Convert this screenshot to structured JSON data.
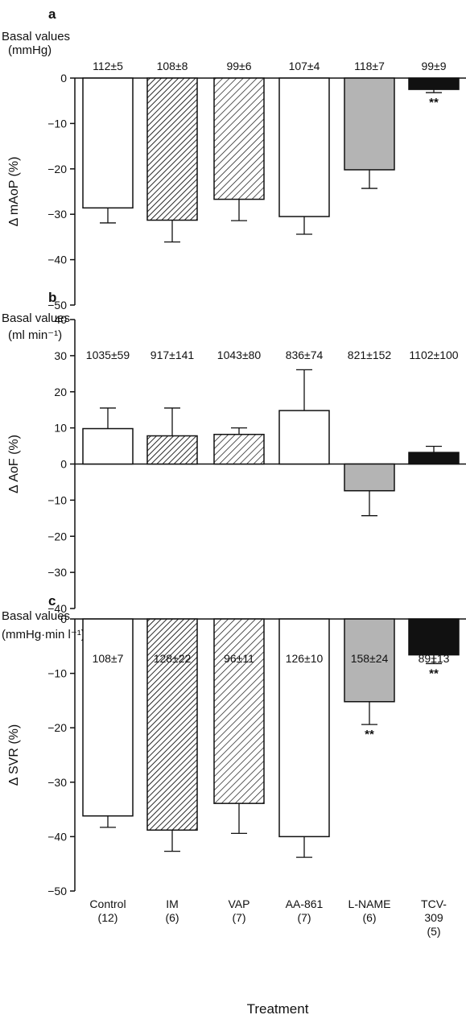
{
  "colors": {
    "control": "#ffffff",
    "im": "hatch-dense",
    "vap": "hatch-sparse",
    "aa861": "#ffffff",
    "lname": "#b4b4b4",
    "tcv309": "#111111"
  },
  "chart_data": [
    {
      "type": "bar",
      "panel": "a",
      "basal_title": [
        "Basal values",
        "(mmHg)"
      ],
      "ylabel": "Δ mAoP (%)",
      "xlabel": "",
      "ylim": [
        -50,
        0
      ],
      "yticks": [
        0,
        -10,
        -20,
        -30,
        -40,
        -50
      ],
      "tick_labels": [
        "0",
        "−10",
        "−20",
        "−30",
        "−40",
        "−50"
      ],
      "categories": [
        "Control",
        "IM",
        "VAP",
        "AA-861",
        "L-NAME",
        "TCV-309"
      ],
      "basal": [
        "112±5",
        "108±8",
        "99±6",
        "107±4",
        "118±7",
        "99±9"
      ],
      "values": [
        -28.6,
        -31.3,
        -26.7,
        -30.5,
        -20.2,
        -2.5
      ],
      "errors": [
        3.3,
        4.8,
        4.7,
        3.9,
        4.1,
        0.7
      ],
      "significance": [
        "",
        "",
        "",
        "",
        "",
        "**"
      ]
    },
    {
      "type": "bar",
      "panel": "b",
      "basal_title": [
        "Basal values",
        "(ml min⁻¹)"
      ],
      "ylabel": "Δ AoF (%)",
      "xlabel": "",
      "ylim": [
        -40,
        40
      ],
      "yticks": [
        40,
        30,
        20,
        10,
        0,
        -10,
        -20,
        -30,
        -40
      ],
      "tick_labels": [
        "40",
        "30",
        "20",
        "10",
        "0",
        "−10",
        "−20",
        "−30",
        "−40"
      ],
      "categories": [
        "Control",
        "IM",
        "VAP",
        "AA-861",
        "L-NAME",
        "TCV-309"
      ],
      "basal": [
        "1035±59",
        "917±141",
        "1043±80",
        "836±74",
        "821±152",
        "1102±100"
      ],
      "values": [
        9.8,
        7.8,
        8.2,
        14.8,
        -7.4,
        3.2
      ],
      "errors": [
        5.7,
        7.7,
        1.8,
        11.3,
        6.9,
        1.7
      ],
      "significance": [
        "",
        "",
        "",
        "",
        "",
        ""
      ]
    },
    {
      "type": "bar",
      "panel": "c",
      "basal_title": [
        "Basal values",
        "(mmHg·min l⁻¹)"
      ],
      "ylabel": "Δ SVR (%)",
      "xlabel": "Treatment",
      "ylim": [
        -50,
        0
      ],
      "yticks": [
        0,
        -10,
        -20,
        -30,
        -40,
        -50
      ],
      "tick_labels": [
        "0",
        "−10",
        "−20",
        "−30",
        "−40",
        "−50"
      ],
      "categories": [
        "Control",
        "IM",
        "VAP",
        "AA-861",
        "L-NAME",
        "TCV-309"
      ],
      "category_lines": [
        [
          "Control",
          "(12)"
        ],
        [
          "IM",
          "(6)"
        ],
        [
          "VAP",
          "(7)"
        ],
        [
          "AA-861",
          "(7)"
        ],
        [
          "L-NAME",
          "(6)"
        ],
        [
          "TCV-",
          "309",
          "(5)"
        ]
      ],
      "basal": [
        "108±7",
        "128±22",
        "96±11",
        "126±10",
        "158±24",
        "89±13"
      ],
      "values": [
        -36.2,
        -38.8,
        -33.9,
        -40.0,
        -15.2,
        -6.6
      ],
      "errors": [
        2.1,
        3.9,
        5.5,
        3.8,
        4.2,
        1.6
      ],
      "significance": [
        "",
        "",
        "",
        "",
        "**",
        "**"
      ]
    }
  ]
}
